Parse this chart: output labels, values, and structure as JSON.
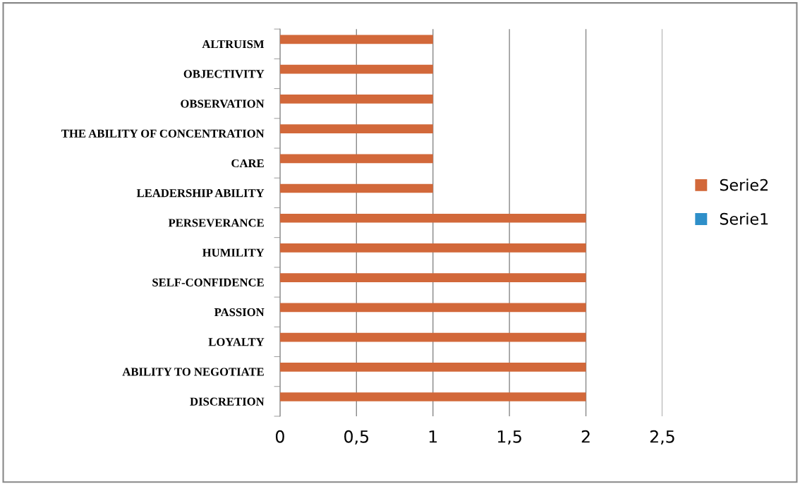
{
  "chart_data": {
    "type": "bar",
    "orientation": "horizontal",
    "categories": [
      "ALTRUISM",
      "OBJECTIVITY",
      "OBSERVATION",
      "THE ABILITY OF CONCENTRATION",
      "CARE",
      "LEADERSHIP ABILITY",
      "PERSEVERANCE",
      "HUMILITY",
      "SELF-CONFIDENCE",
      "PASSION",
      "LOYALTY",
      "ABILITY TO NEGOTIATE",
      "DISCRETION"
    ],
    "series": [
      {
        "name": "Serie1",
        "color": "#2e8fc9",
        "values": [
          null,
          null,
          null,
          null,
          null,
          null,
          null,
          null,
          null,
          null,
          null,
          null,
          null
        ]
      },
      {
        "name": "Serie2",
        "color": "#d2683a",
        "values": [
          1,
          1,
          1,
          1,
          1,
          1,
          2,
          2,
          2,
          2,
          2,
          2,
          2
        ]
      }
    ],
    "xlim": [
      0,
      2.5
    ],
    "xticks": [
      0,
      {
        "value": 0.5,
        "label": "0,5"
      },
      1,
      {
        "value": 1.5,
        "label": "1,5"
      },
      2,
      {
        "value": 2.5,
        "label": "2,5"
      }
    ],
    "grid": "x",
    "legend": "right"
  }
}
